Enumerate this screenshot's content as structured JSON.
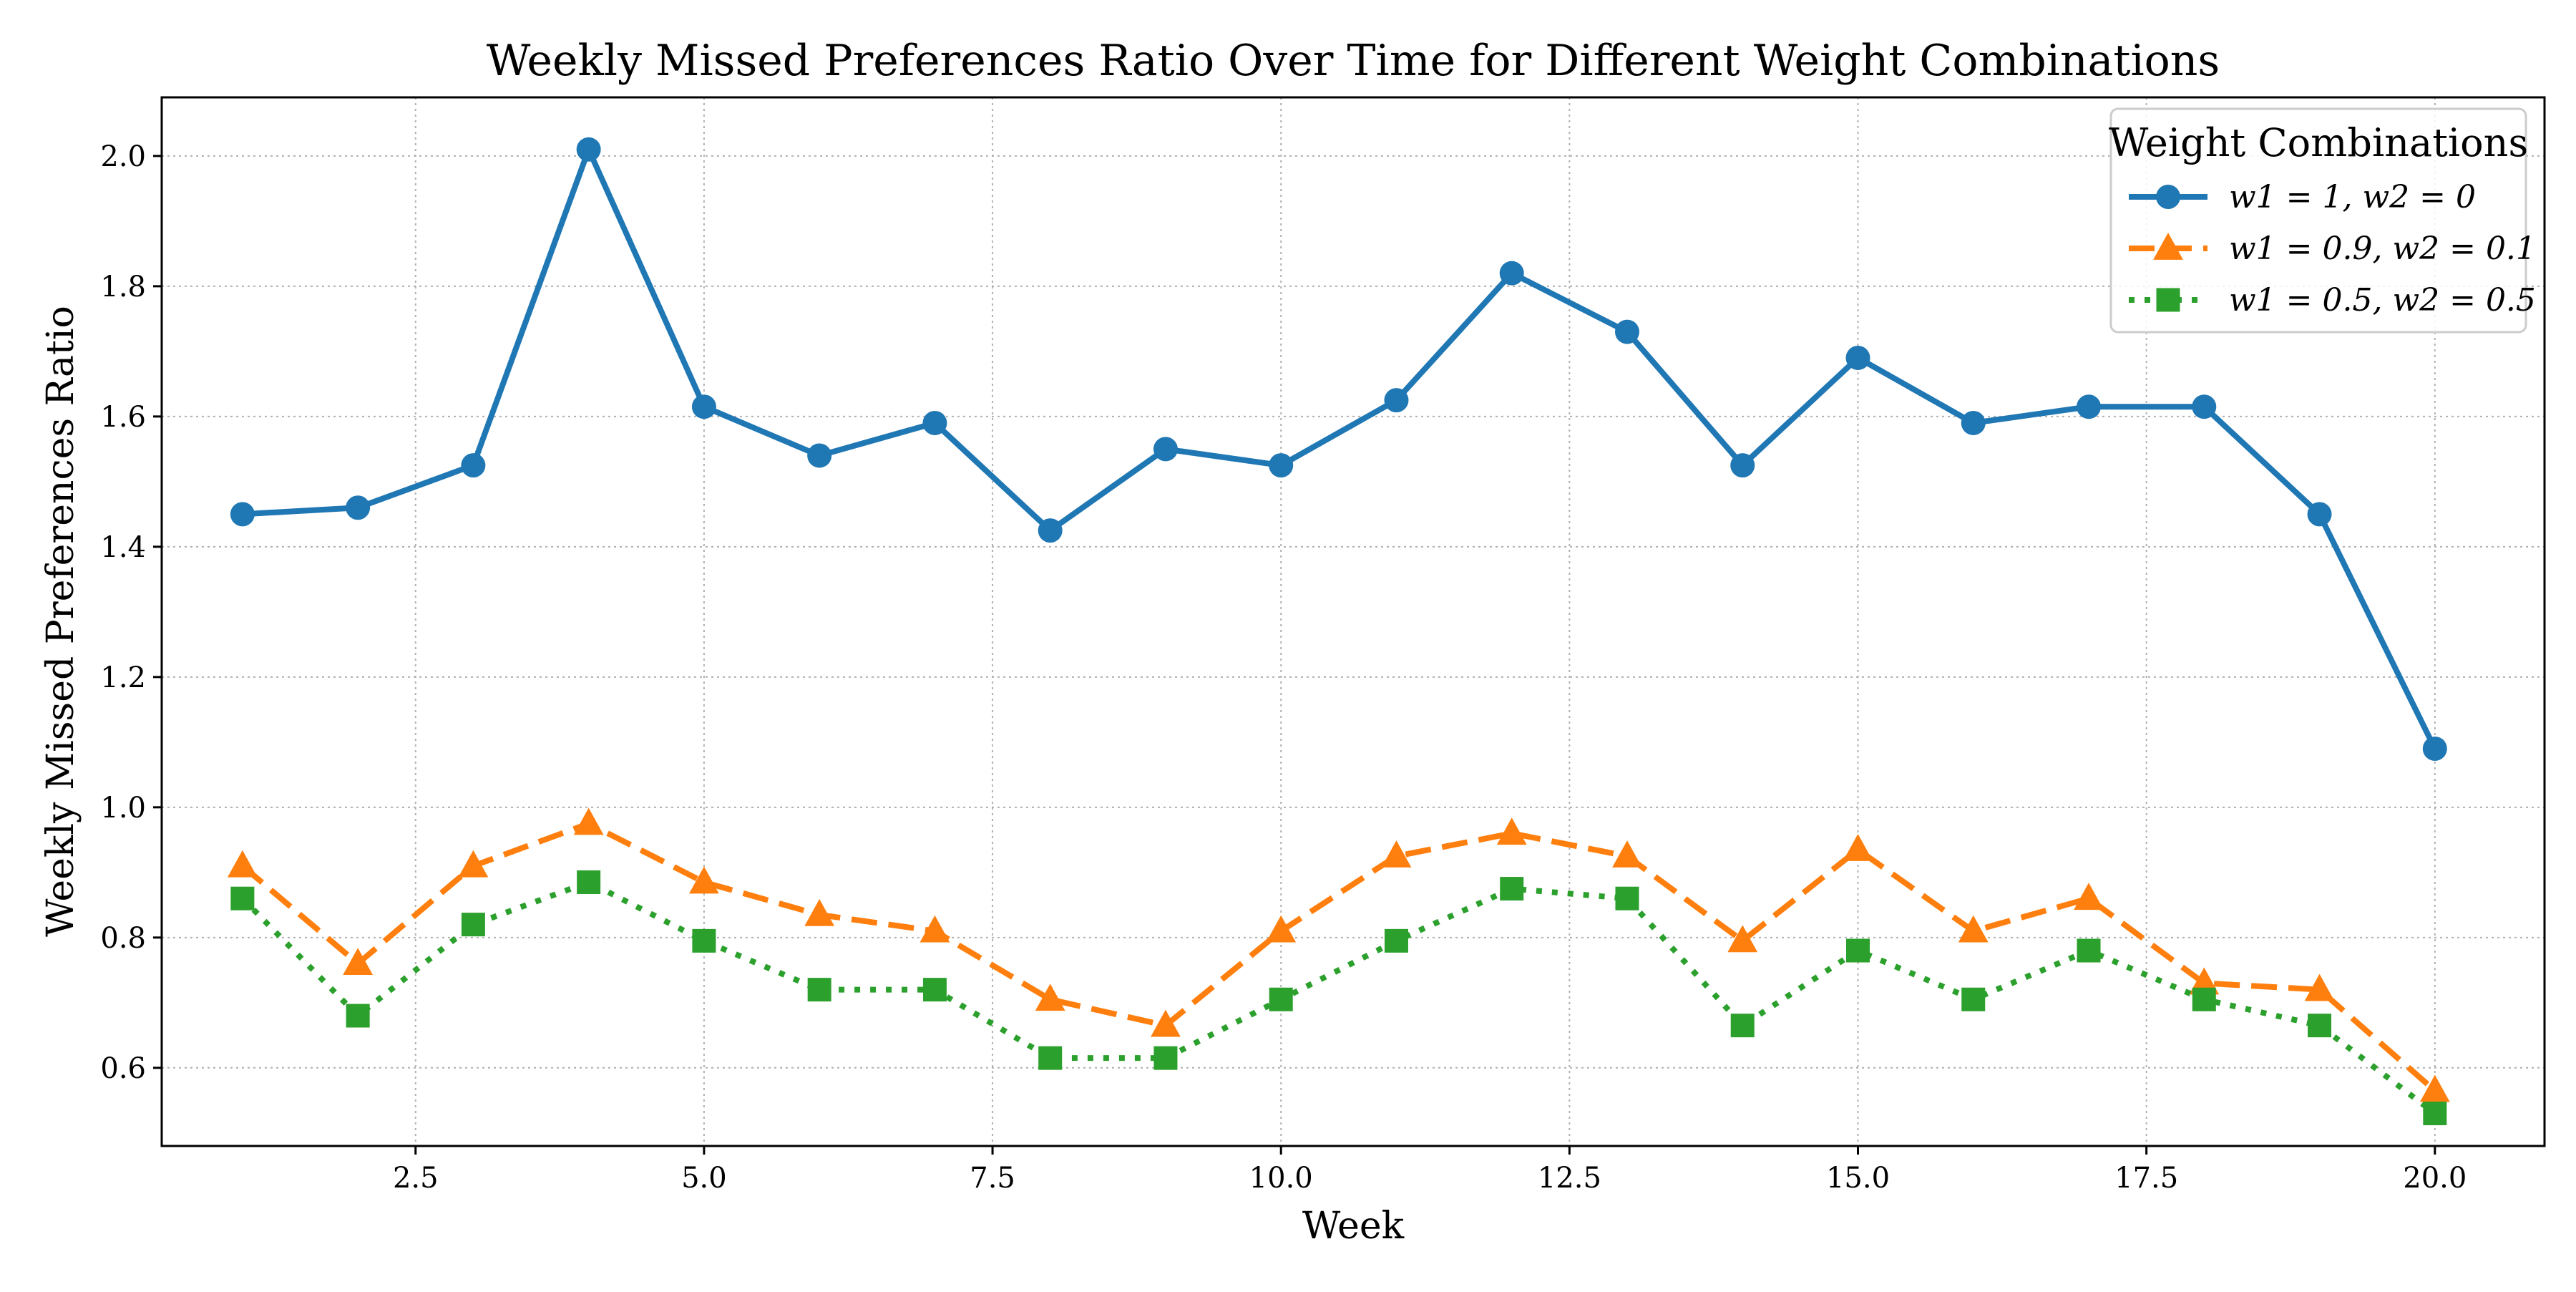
{
  "chart_data": {
    "type": "line",
    "title": "Weekly Missed Preferences Ratio Over Time for Different Weight Combinations",
    "xlabel": "Week",
    "ylabel": "Weekly Missed Preferences Ratio",
    "xlim": [
      0.3,
      20.95
    ],
    "ylim": [
      0.48,
      2.09
    ],
    "x_ticks": [
      2.5,
      5.0,
      7.5,
      10.0,
      12.5,
      15.0,
      17.5,
      20.0
    ],
    "x_tick_labels": [
      "2.5",
      "5.0",
      "7.5",
      "10.0",
      "12.5",
      "15.0",
      "17.5",
      "20.0"
    ],
    "y_ticks": [
      0.6,
      0.8,
      1.0,
      1.2,
      1.4,
      1.6,
      1.8,
      2.0
    ],
    "y_tick_labels": [
      "0.6",
      "0.8",
      "1.0",
      "1.2",
      "1.4",
      "1.6",
      "1.8",
      "2.0"
    ],
    "grid": true,
    "legend": {
      "title": "Weight Combinations",
      "position": "top-right"
    },
    "x": [
      1,
      2,
      3,
      4,
      5,
      6,
      7,
      8,
      9,
      10,
      11,
      12,
      13,
      14,
      15,
      16,
      17,
      18,
      19,
      20
    ],
    "series": [
      {
        "name": "w1 = 1, w2 = 0",
        "color": "#1f77b4",
        "line_style": "solid",
        "marker": "circle",
        "values": [
          1.45,
          1.46,
          1.525,
          2.01,
          1.615,
          1.54,
          1.59,
          1.425,
          1.55,
          1.525,
          1.625,
          1.82,
          1.73,
          1.525,
          1.69,
          1.59,
          1.615,
          1.615,
          1.45,
          1.09
        ]
      },
      {
        "name": "w1 = 0.9, w2 = 0.1",
        "color": "#ff7f0e",
        "line_style": "dashed",
        "marker": "triangle",
        "values": [
          0.91,
          0.76,
          0.91,
          0.975,
          0.885,
          0.835,
          0.81,
          0.705,
          0.665,
          0.81,
          0.925,
          0.96,
          0.925,
          0.795,
          0.935,
          0.81,
          0.86,
          0.73,
          0.72,
          0.565
        ]
      },
      {
        "name": "w1 = 0.5, w2 = 0.5",
        "color": "#2ca02c",
        "line_style": "dotted",
        "marker": "square",
        "values": [
          0.86,
          0.68,
          0.82,
          0.885,
          0.795,
          0.72,
          0.72,
          0.615,
          0.615,
          0.705,
          0.795,
          0.875,
          0.86,
          0.665,
          0.78,
          0.705,
          0.78,
          0.705,
          0.665,
          0.53
        ]
      }
    ]
  }
}
